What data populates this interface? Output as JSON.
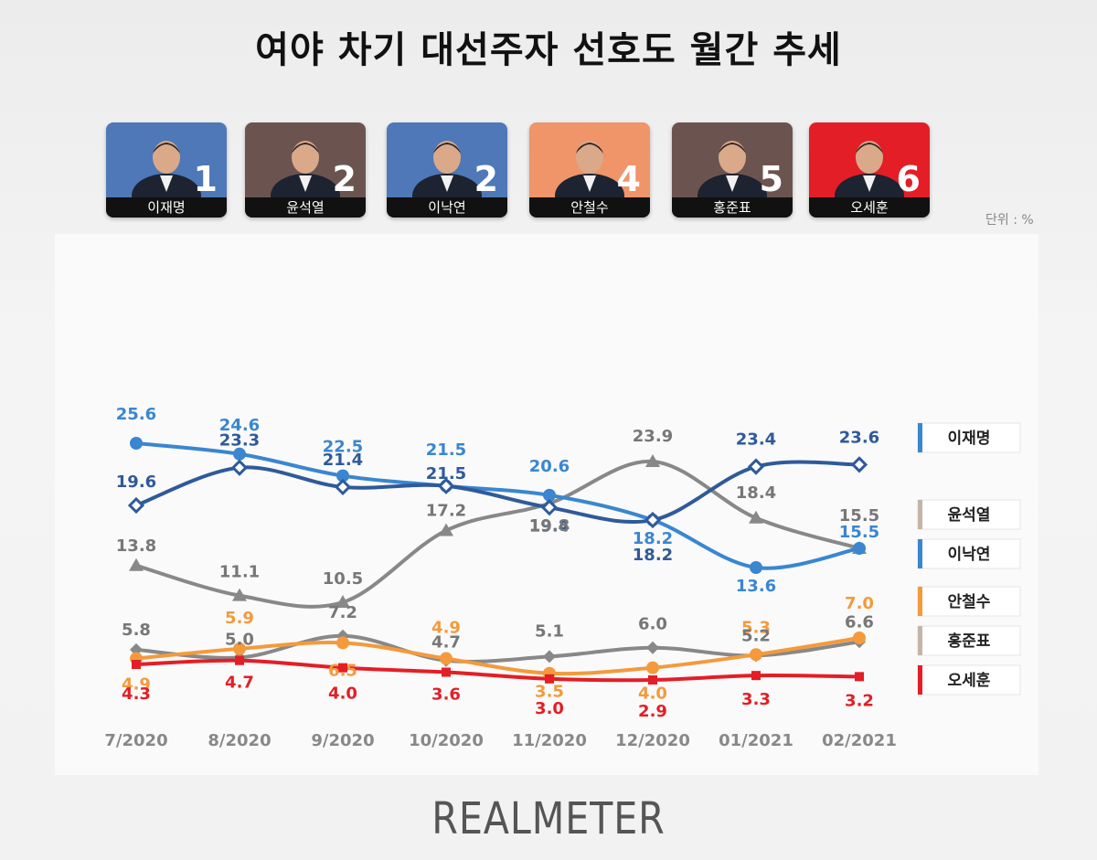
{
  "title": "여야 차기 대선주자 선호도 월간 추세",
  "unit_label": "단위 : %",
  "logo_text": "REALMETER",
  "candidates": [
    {
      "name": "이재명",
      "rank": "1",
      "bg": "#4e78b8"
    },
    {
      "name": "윤석열",
      "rank": "2",
      "bg": "#6b5450"
    },
    {
      "name": "이낙연",
      "rank": "2",
      "bg": "#4e78b8"
    },
    {
      "name": "안철수",
      "rank": "4",
      "bg": "#f0946a"
    },
    {
      "name": "홍준표",
      "rank": "5",
      "bg": "#6b5450"
    },
    {
      "name": "오세훈",
      "rank": "6",
      "bg": "#e31e26"
    }
  ],
  "chart_data": {
    "type": "line",
    "categories": [
      "7/2020",
      "8/2020",
      "9/2020",
      "10/2020",
      "11/2020",
      "12/2020",
      "01/2021",
      "02/2021"
    ],
    "series": [
      {
        "name": "이재명",
        "values": [
          19.6,
          23.3,
          21.4,
          21.5,
          19.4,
          18.2,
          23.4,
          23.6
        ],
        "color": "#2f5a9a",
        "marker": "diamond-open"
      },
      {
        "name": "윤석열",
        "values": [
          13.8,
          11.1,
          10.5,
          17.2,
          19.8,
          23.9,
          18.4,
          15.5
        ],
        "color": "#888888",
        "marker": "triangle"
      },
      {
        "name": "이낙연",
        "values": [
          25.6,
          24.6,
          22.5,
          21.5,
          20.6,
          18.2,
          13.6,
          15.5
        ],
        "color": "#3a86d0",
        "marker": "circle"
      },
      {
        "name": "안철수",
        "values": [
          4.9,
          5.9,
          6.5,
          4.9,
          3.5,
          4.0,
          5.3,
          7.0
        ],
        "color": "#f49a3c",
        "marker": "circle"
      },
      {
        "name": "홍준표",
        "values": [
          5.8,
          5.0,
          7.2,
          4.7,
          5.1,
          6.0,
          5.2,
          6.6
        ],
        "color": "#888888",
        "marker": "diamond"
      },
      {
        "name": "오세훈",
        "values": [
          4.3,
          4.7,
          4.0,
          3.6,
          3.0,
          2.9,
          3.3,
          3.2
        ],
        "color": "#e31e26",
        "marker": "square"
      }
    ],
    "legend": [
      {
        "name": "이재명",
        "color": "#3a86d0"
      },
      {
        "name": "윤석열",
        "color": "#c4b5a8"
      },
      {
        "name": "이낙연",
        "color": "#3a86d0"
      },
      {
        "name": "안철수",
        "color": "#f49a3c"
      },
      {
        "name": "홍준표",
        "color": "#c4b5a8"
      },
      {
        "name": "오세훈",
        "color": "#e31e26"
      }
    ],
    "legend_position": "right",
    "grid": false
  }
}
